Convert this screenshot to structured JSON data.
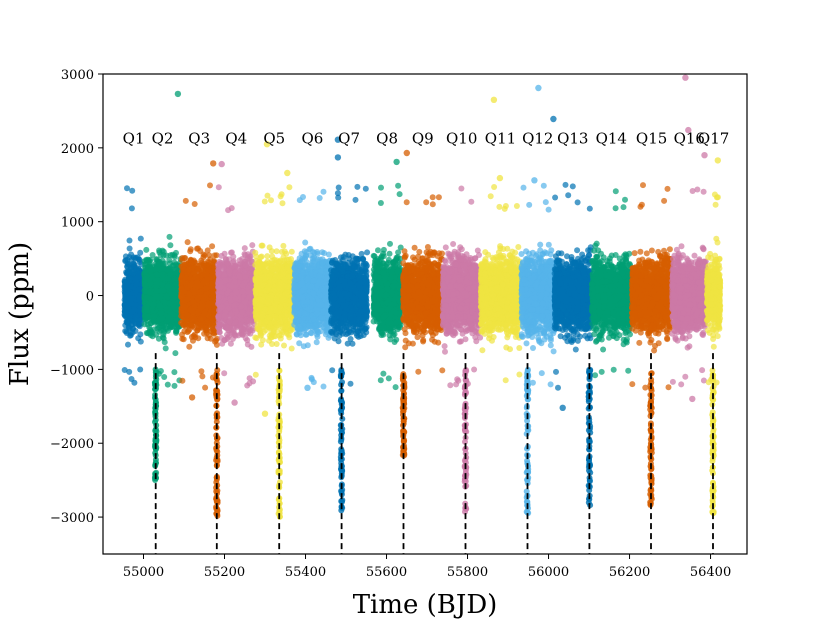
{
  "chart_data": {
    "type": "scatter",
    "title": "",
    "xlabel": "Time (BJD)",
    "ylabel": "Flux (ppm)",
    "xlim": [
      54900,
      56490
    ],
    "ylim": [
      -3500,
      3000
    ],
    "xticks": [
      55000,
      55200,
      55400,
      55600,
      55800,
      56000,
      56200,
      56400
    ],
    "yticks": [
      -3000,
      -2000,
      -1000,
      0,
      1000,
      2000,
      3000
    ],
    "xtick_labels": [
      "55000",
      "55200",
      "55400",
      "55600",
      "55800",
      "56000",
      "56200",
      "56400"
    ],
    "ytick_labels": [
      "−3000",
      "−2000",
      "−1000",
      "0",
      "1000",
      "2000",
      "3000"
    ],
    "grid": false,
    "quarters": [
      {
        "name": "Q1",
        "start": 54953,
        "end": 54998,
        "color": "#0072b2"
      },
      {
        "name": "Q2",
        "start": 55002,
        "end": 55092,
        "color": "#009e73"
      },
      {
        "name": "Q3",
        "start": 55093,
        "end": 55182,
        "color": "#d55e00"
      },
      {
        "name": "Q4",
        "start": 55184,
        "end": 55274,
        "color": "#cc79a7"
      },
      {
        "name": "Q5",
        "start": 55276,
        "end": 55370,
        "color": "#f0e442"
      },
      {
        "name": "Q6",
        "start": 55372,
        "end": 55462,
        "color": "#56b4e9"
      },
      {
        "name": "Q7",
        "start": 55463,
        "end": 55552,
        "color": "#0072b2"
      },
      {
        "name": "Q8",
        "start": 55568,
        "end": 55635,
        "color": "#009e73"
      },
      {
        "name": "Q9",
        "start": 55641,
        "end": 55738,
        "color": "#d55e00"
      },
      {
        "name": "Q10",
        "start": 55739,
        "end": 55832,
        "color": "#cc79a7"
      },
      {
        "name": "Q11",
        "start": 55833,
        "end": 55930,
        "color": "#f0e442"
      },
      {
        "name": "Q12",
        "start": 55933,
        "end": 56014,
        "color": "#56b4e9"
      },
      {
        "name": "Q13",
        "start": 56015,
        "end": 56105,
        "color": "#0072b2"
      },
      {
        "name": "Q14",
        "start": 56107,
        "end": 56203,
        "color": "#009e73"
      },
      {
        "name": "Q15",
        "start": 56206,
        "end": 56303,
        "color": "#d55e00"
      },
      {
        "name": "Q16",
        "start": 56305,
        "end": 56390,
        "color": "#cc79a7"
      },
      {
        "name": "Q17",
        "start": 56391,
        "end": 56424,
        "color": "#f0e442"
      }
    ],
    "transits": [
      {
        "time": 55030,
        "depth": -2500,
        "color": "#009e73"
      },
      {
        "time": 55181,
        "depth": -3000,
        "color": "#d55e00"
      },
      {
        "time": 55335,
        "depth": -3000,
        "color": "#f0e442"
      },
      {
        "time": 55489,
        "depth": -2950,
        "color": "#0072b2"
      },
      {
        "time": 55642,
        "depth": -2200,
        "color": "#d55e00"
      },
      {
        "time": 55795,
        "depth": -2950,
        "color": "#cc79a7"
      },
      {
        "time": 55948,
        "depth": -2950,
        "color": "#56b4e9"
      },
      {
        "time": 56101,
        "depth": -2850,
        "color": "#0072b2"
      },
      {
        "time": 56253,
        "depth": -2900,
        "color": "#d55e00"
      },
      {
        "time": 56406,
        "depth": -2950,
        "color": "#f0e442"
      }
    ],
    "outliers": [
      {
        "x": 55085,
        "y": 2730,
        "color": "#009e73"
      },
      {
        "x": 55865,
        "y": 2650,
        "color": "#f0e442"
      },
      {
        "x": 55975,
        "y": 2810,
        "color": "#56b4e9"
      },
      {
        "x": 56012,
        "y": 2390,
        "color": "#0072b2"
      },
      {
        "x": 56338,
        "y": 2950,
        "color": "#cc79a7"
      },
      {
        "x": 56345,
        "y": 2240,
        "color": "#cc79a7"
      },
      {
        "x": 56385,
        "y": 1900,
        "color": "#cc79a7"
      },
      {
        "x": 55480,
        "y": 1870,
        "color": "#0072b2"
      },
      {
        "x": 55480,
        "y": 2110,
        "color": "#0072b2"
      },
      {
        "x": 55625,
        "y": 1810,
        "color": "#009e73"
      },
      {
        "x": 55650,
        "y": 1930,
        "color": "#d55e00"
      },
      {
        "x": 55172,
        "y": 1790,
        "color": "#d55e00"
      },
      {
        "x": 55193,
        "y": 1780,
        "color": "#cc79a7"
      },
      {
        "x": 55305,
        "y": 2050,
        "color": "#f0e442"
      },
      {
        "x": 55355,
        "y": 1660,
        "color": "#f0e442"
      },
      {
        "x": 55965,
        "y": 1560,
        "color": "#56b4e9"
      },
      {
        "x": 56418,
        "y": 1830,
        "color": "#f0e442"
      },
      {
        "x": 55880,
        "y": 1590,
        "color": "#f0e442"
      },
      {
        "x": 55300,
        "y": -1600,
        "color": "#f0e442"
      },
      {
        "x": 56035,
        "y": -1520,
        "color": "#0072b2"
      },
      {
        "x": 55225,
        "y": -1450,
        "color": "#cc79a7"
      },
      {
        "x": 55120,
        "y": -1380,
        "color": "#d55e00"
      },
      {
        "x": 56355,
        "y": -1400,
        "color": "#cc79a7"
      },
      {
        "x": 55405,
        "y": -1250,
        "color": "#56b4e9"
      }
    ]
  }
}
